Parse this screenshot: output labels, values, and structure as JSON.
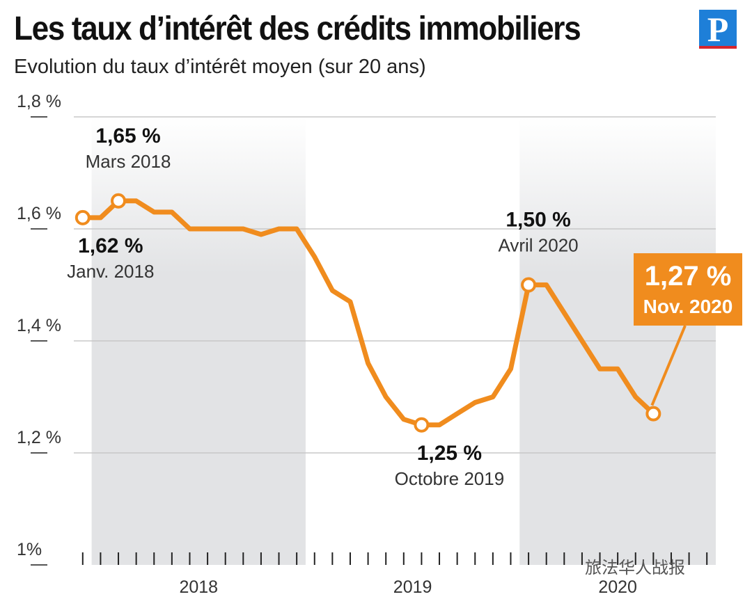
{
  "title": "Les taux d’intérêt des crédits immobiliers",
  "subtitle": "Evolution du taux d’intérêt moyen (sur 20 ans)",
  "logo_letter": "P",
  "watermark": "旅法华人战报",
  "colors": {
    "line": "#f08c1e",
    "highlight_box": "#f08c1e",
    "shade_band": "#e2e3e5",
    "grid": "#c8c8c8",
    "logo": "#1e7fd8"
  },
  "chart_data": {
    "type": "line",
    "title": "Les taux d’intérêt des crédits immobiliers",
    "subtitle": "Evolution du taux d’intérêt moyen (sur 20 ans)",
    "y_unit": "%",
    "ylim": [
      1.0,
      1.8
    ],
    "y_ticks": [
      {
        "value": 1.0,
        "label": "1%"
      },
      {
        "value": 1.2,
        "label": "1,2 %"
      },
      {
        "value": 1.4,
        "label": "1,4 %"
      },
      {
        "value": 1.6,
        "label": "1,6 %"
      },
      {
        "value": 1.8,
        "label": "1,8 %"
      }
    ],
    "x_period": {
      "start": "2017-12",
      "end": "2020-11"
    },
    "shaded_years": [
      2018,
      2020
    ],
    "year_labels": [
      "2018",
      "2019",
      "2020"
    ],
    "grid": true,
    "series": [
      {
        "points": [
          [
            "2017-12",
            1.62
          ],
          [
            "2018-01",
            1.62
          ],
          [
            "2018-02",
            1.65
          ],
          [
            "2018-03",
            1.65
          ],
          [
            "2018-04",
            1.63
          ],
          [
            "2018-05",
            1.63
          ],
          [
            "2018-06",
            1.6
          ],
          [
            "2018-07",
            1.6
          ],
          [
            "2018-08",
            1.6
          ],
          [
            "2018-09",
            1.6
          ],
          [
            "2018-10",
            1.59
          ],
          [
            "2018-11",
            1.6
          ],
          [
            "2018-12",
            1.6
          ],
          [
            "2019-01",
            1.55
          ],
          [
            "2019-02",
            1.49
          ],
          [
            "2019-03",
            1.47
          ],
          [
            "2019-04",
            1.36
          ],
          [
            "2019-05",
            1.3
          ],
          [
            "2019-06",
            1.26
          ],
          [
            "2019-07",
            1.25
          ],
          [
            "2019-08",
            1.25
          ],
          [
            "2019-09",
            1.27
          ],
          [
            "2019-10",
            1.29
          ],
          [
            "2019-11",
            1.3
          ],
          [
            "2019-12",
            1.35
          ],
          [
            "2020-01",
            1.5
          ],
          [
            "2020-02",
            1.5
          ],
          [
            "2020-03",
            1.45
          ],
          [
            "2020-04",
            1.4
          ],
          [
            "2020-05",
            1.35
          ],
          [
            "2020-06",
            1.35
          ],
          [
            "2020-07",
            1.3
          ],
          [
            "2020-08",
            1.27
          ]
        ]
      }
    ],
    "annotations": [
      {
        "point_index": 0,
        "value": "1,62 %",
        "date": "Janv. 2018",
        "pos": "below"
      },
      {
        "point_index": 2,
        "value": "1,65 %",
        "date": "Mars 2018",
        "pos": "above"
      },
      {
        "point_index": 19,
        "value": "1,25 %",
        "date": "Octobre 2019",
        "pos": "below"
      },
      {
        "point_index": 25,
        "value": "1,50 %",
        "date": "Avril 2020",
        "pos": "above"
      },
      {
        "point_index": 32,
        "value": "1,27 %",
        "date": "Nov. 2020",
        "pos": "highlight"
      }
    ]
  }
}
